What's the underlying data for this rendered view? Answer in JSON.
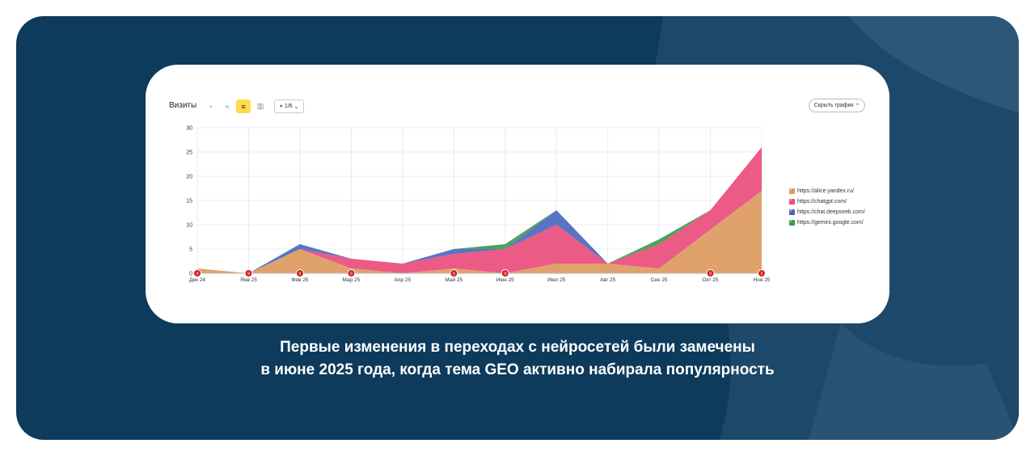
{
  "toolbar": {
    "title": "Визиты",
    "series_selector": "1/6",
    "hide_chart": "Скрыть график"
  },
  "caption": {
    "line1": "Первые изменения в переходах с нейросетей были замечены",
    "line2": "в июне 2025 года, когда тема GEO активно набирала популярность"
  },
  "colors": {
    "slide_bg": "#0e3a5c",
    "alice": "#dd9a5f",
    "chatgpt": "#ea4c7c",
    "deepseek": "#4a69bd",
    "gemini": "#3f9a4a",
    "marker": "#d21f1f"
  },
  "chart_data": {
    "type": "area",
    "stacked": true,
    "title": "",
    "xlabel": "",
    "ylabel": "",
    "categories": [
      "Дек 24",
      "Янв 25",
      "Фев 25",
      "Мар 25",
      "Апр 25",
      "Май 25",
      "Июн 25",
      "Июл 25",
      "Авг 25",
      "Сен 25",
      "Окт 25",
      "Ноя 25"
    ],
    "ylim": [
      0,
      30
    ],
    "yticks": [
      0,
      5,
      10,
      15,
      20,
      25,
      30
    ],
    "grid": true,
    "legend_position": "right",
    "series": [
      {
        "name": "https://alice.yandex.ru/",
        "color": "#dd9a5f",
        "values": [
          1,
          0,
          5,
          1,
          0,
          1,
          0,
          2,
          2,
          1,
          9,
          17
        ]
      },
      {
        "name": "https://chatgpt.com/",
        "color": "#ea4c7c",
        "values": [
          0,
          0,
          0,
          2,
          2,
          3,
          5,
          8,
          0,
          5,
          4,
          9
        ]
      },
      {
        "name": "https://chat.deepseek.com/",
        "color": "#4a69bd",
        "values": [
          0,
          0,
          1,
          0,
          0,
          1,
          0,
          3,
          0,
          0,
          0,
          0
        ]
      },
      {
        "name": "https://gemini.google.com/",
        "color": "#3f9a4a",
        "values": [
          0,
          0,
          0,
          0,
          0,
          0,
          1,
          0,
          0,
          1,
          0,
          0
        ]
      }
    ],
    "markers": [
      {
        "category": "Дек 24",
        "label": "9"
      },
      {
        "category": "Янв 25",
        "label": "9"
      },
      {
        "category": "Фев 25",
        "label": "9"
      },
      {
        "category": "Мар 25",
        "label": "9"
      },
      {
        "category": "Май 25",
        "label": "9"
      },
      {
        "category": "Июн 25",
        "label": "9"
      },
      {
        "category": "Окт 25",
        "label": "9"
      },
      {
        "category": "Ноя 25",
        "label": "9"
      }
    ]
  }
}
